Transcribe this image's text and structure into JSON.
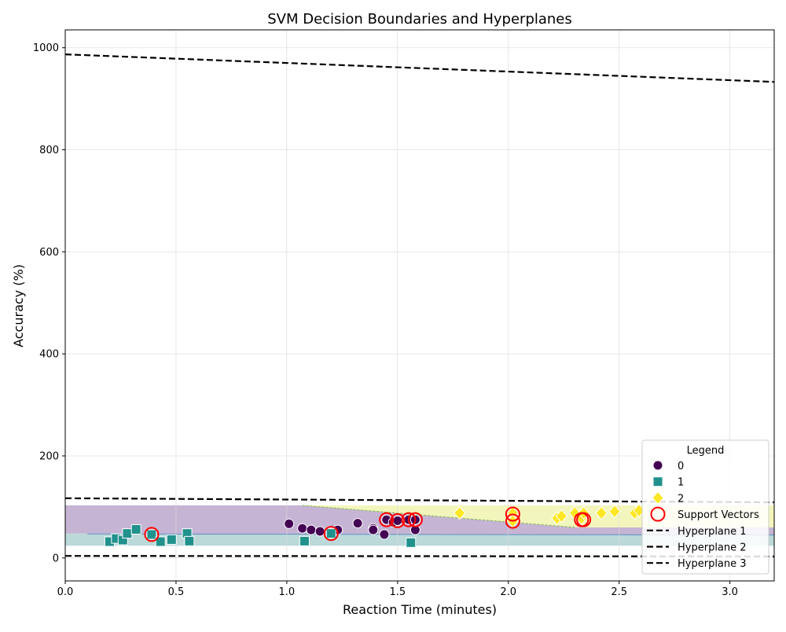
{
  "chart_data": {
    "type": "scatter",
    "title": "SVM Decision Boundaries and Hyperplanes",
    "xlabel": "Reaction Time (minutes)",
    "ylabel": "Accuracy (%)",
    "xlim": [
      0.0,
      3.2
    ],
    "ylim": [
      -45,
      1035
    ],
    "xticks": [
      "0.0",
      "0.5",
      "1.0",
      "1.5",
      "2.0",
      "2.5",
      "3.0"
    ],
    "yticks": [
      "0",
      "200",
      "400",
      "600",
      "800",
      "1000"
    ],
    "grid": true,
    "legend": {
      "title": "Legend",
      "position": "lower right",
      "entries": [
        "0",
        "1",
        "2",
        "Support Vectors",
        "Hyperplane 1",
        "Hyperplane 2",
        "Hyperplane 3"
      ]
    },
    "colors": {
      "class0": "#440154",
      "class1": "#21918c",
      "class2": "#fde725",
      "support": "#ff0000",
      "hyperplane": "#000000",
      "region0": "#c5b4d3",
      "region1": "#bcd9da",
      "region2": "#f3f6bc"
    },
    "series": [
      {
        "name": "0",
        "marker": "circle",
        "points": [
          [
            1.01,
            67
          ],
          [
            1.07,
            58
          ],
          [
            1.11,
            55
          ],
          [
            1.15,
            52
          ],
          [
            1.2,
            50
          ],
          [
            1.23,
            55
          ],
          [
            1.32,
            68
          ],
          [
            1.39,
            58
          ],
          [
            1.39,
            55
          ],
          [
            1.44,
            46
          ],
          [
            1.45,
            75
          ],
          [
            1.48,
            70
          ],
          [
            1.5,
            73
          ],
          [
            1.55,
            75
          ],
          [
            1.58,
            55
          ],
          [
            1.58,
            75
          ]
        ]
      },
      {
        "name": "1",
        "marker": "square",
        "points": [
          [
            0.2,
            32
          ],
          [
            0.23,
            38
          ],
          [
            0.26,
            35
          ],
          [
            0.28,
            48
          ],
          [
            0.32,
            56
          ],
          [
            0.39,
            46
          ],
          [
            0.43,
            32
          ],
          [
            0.48,
            36
          ],
          [
            0.55,
            48
          ],
          [
            0.56,
            33
          ],
          [
            1.08,
            33
          ],
          [
            1.2,
            48
          ],
          [
            1.56,
            30
          ]
        ]
      },
      {
        "name": "2",
        "marker": "diamond",
        "points": [
          [
            1.78,
            88
          ],
          [
            2.02,
            88
          ],
          [
            2.02,
            72
          ],
          [
            2.22,
            78
          ],
          [
            2.24,
            82
          ],
          [
            2.3,
            88
          ],
          [
            2.33,
            78
          ],
          [
            2.34,
            88
          ],
          [
            2.42,
            88
          ],
          [
            2.48,
            91
          ],
          [
            2.57,
            88
          ],
          [
            2.59,
            93
          ]
        ]
      }
    ],
    "support_vectors": [
      [
        0.39,
        46
      ],
      [
        1.2,
        48
      ],
      [
        1.45,
        75
      ],
      [
        1.5,
        73
      ],
      [
        1.55,
        75
      ],
      [
        1.58,
        75
      ],
      [
        2.02,
        86
      ],
      [
        2.02,
        72
      ],
      [
        2.33,
        75
      ],
      [
        2.34,
        75
      ]
    ],
    "hyperplanes": [
      {
        "name": "Hyperplane 1",
        "x": [
          0.0,
          3.2
        ],
        "y": [
          987,
          933
        ]
      },
      {
        "name": "Hyperplane 2",
        "x": [
          0.0,
          3.2
        ],
        "y": [
          117,
          109
        ]
      },
      {
        "name": "Hyperplane 3",
        "x": [
          0.0,
          3.2
        ],
        "y": [
          4,
          3
        ]
      }
    ],
    "regions": [
      {
        "class": "1",
        "polygon": [
          [
            0.0,
            24
          ],
          [
            3.2,
            24
          ],
          [
            3.2,
            45
          ],
          [
            0.0,
            48
          ]
        ]
      },
      {
        "class": "0",
        "polygon": [
          [
            0.0,
            48
          ],
          [
            3.2,
            45
          ],
          [
            3.2,
            60
          ],
          [
            2.3,
            60
          ],
          [
            1.07,
            103
          ],
          [
            0.0,
            103
          ]
        ]
      },
      {
        "class": "2",
        "polygon": [
          [
            1.07,
            103
          ],
          [
            3.2,
            103
          ],
          [
            3.2,
            60
          ],
          [
            2.3,
            60
          ]
        ]
      }
    ]
  }
}
